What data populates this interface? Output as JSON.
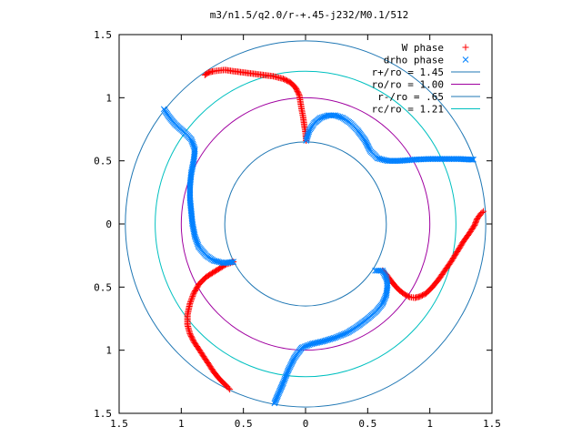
{
  "chart_data": {
    "type": "scatter",
    "title": "m3/n1.5/q2.0/r-+.45-j232/M0.1/512",
    "xlim": [
      -1.5,
      1.5
    ],
    "ylim": [
      -1.5,
      1.5
    ],
    "xticks": [
      -1.5,
      -1,
      -0.5,
      0,
      0.5,
      1,
      1.5
    ],
    "yticks": [
      1.5,
      1,
      0.5,
      0,
      -0.5,
      -1,
      -1.5
    ],
    "xtick_labels": [
      "1.5",
      "1",
      "0.5",
      "0",
      "0.5",
      "1",
      "1.5"
    ],
    "ytick_labels": [
      "1.5",
      "1",
      "0.5",
      "0",
      "0.5",
      "1",
      "1.5"
    ],
    "grid": false,
    "legend_position": "top-right",
    "legend": [
      {
        "label": "W phase",
        "marker": "plus",
        "color": "#ff0000"
      },
      {
        "label": "drho phase",
        "marker": "cross",
        "color": "#0080ff"
      },
      {
        "label": "r+/ro = 1.45",
        "marker": "line",
        "color": "#1f77b4"
      },
      {
        "label": "ro/ro = 1.00",
        "marker": "line",
        "color": "#a000a0"
      },
      {
        "label": "r-/ro = .65",
        "marker": "line",
        "color": "#1f77b4"
      },
      {
        "label": "rc/ro = 1.21",
        "marker": "line",
        "color": "#00c0c0"
      }
    ],
    "circles": [
      {
        "name": "r+/ro = 1.45",
        "r": 1.45,
        "color": "#1f77b4"
      },
      {
        "name": "ro/ro = 1.00",
        "r": 1.0,
        "color": "#a000a0"
      },
      {
        "name": "r-/ro = .65",
        "r": 0.65,
        "color": "#1f77b4"
      },
      {
        "name": "rc/ro = 1.21",
        "r": 1.21,
        "color": "#00c0c0"
      }
    ],
    "series": [
      {
        "name": "W phase",
        "marker": "plus",
        "color": "#ff0000",
        "arms": [
          [
            [
              -0.81,
              1.18
            ],
            [
              -0.78,
              1.2
            ],
            [
              -0.74,
              1.21
            ],
            [
              -0.7,
              1.215
            ],
            [
              -0.65,
              1.22
            ],
            [
              -0.58,
              1.21
            ],
            [
              -0.5,
              1.2
            ],
            [
              -0.42,
              1.19
            ],
            [
              -0.34,
              1.18
            ],
            [
              -0.26,
              1.17
            ],
            [
              -0.18,
              1.15
            ],
            [
              -0.12,
              1.12
            ],
            [
              -0.08,
              1.08
            ],
            [
              -0.05,
              1.02
            ],
            [
              -0.04,
              0.96
            ],
            [
              -0.03,
              0.9
            ],
            [
              -0.02,
              0.85
            ],
            [
              -0.01,
              0.78
            ],
            [
              0.0,
              0.72
            ],
            [
              0.005,
              0.66
            ]
          ],
          [
            [
              0.62,
              -0.37
            ],
            [
              0.65,
              -0.4
            ],
            [
              0.68,
              -0.44
            ],
            [
              0.72,
              -0.49
            ],
            [
              0.76,
              -0.53
            ],
            [
              0.8,
              -0.56
            ],
            [
              0.84,
              -0.58
            ],
            [
              0.88,
              -0.585
            ],
            [
              0.92,
              -0.575
            ],
            [
              0.97,
              -0.55
            ],
            [
              1.02,
              -0.5
            ],
            [
              1.07,
              -0.44
            ],
            [
              1.12,
              -0.37
            ],
            [
              1.17,
              -0.3
            ],
            [
              1.22,
              -0.22
            ],
            [
              1.27,
              -0.14
            ],
            [
              1.32,
              -0.07
            ],
            [
              1.36,
              -0.01
            ],
            [
              1.38,
              0.04
            ],
            [
              1.41,
              0.08
            ],
            [
              1.43,
              0.1
            ]
          ],
          [
            [
              -0.58,
              -0.3
            ],
            [
              -0.64,
              -0.32
            ],
            [
              -0.72,
              -0.37
            ],
            [
              -0.8,
              -0.42
            ],
            [
              -0.86,
              -0.48
            ],
            [
              -0.9,
              -0.55
            ],
            [
              -0.93,
              -0.63
            ],
            [
              -0.95,
              -0.72
            ],
            [
              -0.95,
              -0.8
            ],
            [
              -0.93,
              -0.87
            ],
            [
              -0.9,
              -0.93
            ],
            [
              -0.86,
              -0.99
            ],
            [
              -0.82,
              -1.05
            ],
            [
              -0.78,
              -1.11
            ],
            [
              -0.74,
              -1.17
            ],
            [
              -0.7,
              -1.22
            ],
            [
              -0.66,
              -1.26
            ],
            [
              -0.63,
              -1.29
            ],
            [
              -0.61,
              -1.31
            ]
          ]
        ]
      },
      {
        "name": "drho phase",
        "marker": "cross",
        "color": "#0080ff",
        "arms": [
          [
            [
              0.005,
              0.66
            ],
            [
              0.03,
              0.74
            ],
            [
              0.07,
              0.8
            ],
            [
              0.12,
              0.84
            ],
            [
              0.18,
              0.86
            ],
            [
              0.24,
              0.86
            ],
            [
              0.3,
              0.84
            ],
            [
              0.36,
              0.8
            ],
            [
              0.42,
              0.74
            ],
            [
              0.48,
              0.66
            ],
            [
              0.52,
              0.58
            ],
            [
              0.58,
              0.52
            ],
            [
              0.66,
              0.5
            ],
            [
              0.76,
              0.5
            ],
            [
              0.88,
              0.51
            ],
            [
              1.0,
              0.515
            ],
            [
              1.12,
              0.515
            ],
            [
              1.24,
              0.515
            ],
            [
              1.32,
              0.51
            ],
            [
              1.35,
              0.51
            ]
          ],
          [
            [
              -1.14,
              0.91
            ],
            [
              -1.1,
              0.85
            ],
            [
              -1.05,
              0.79
            ],
            [
              -0.98,
              0.73
            ],
            [
              -0.92,
              0.67
            ],
            [
              -0.89,
              0.59
            ],
            [
              -0.9,
              0.5
            ],
            [
              -0.92,
              0.4
            ],
            [
              -0.93,
              0.3
            ],
            [
              -0.93,
              0.2
            ],
            [
              -0.92,
              0.1
            ],
            [
              -0.91,
              0.0
            ],
            [
              -0.89,
              -0.1
            ],
            [
              -0.86,
              -0.18
            ],
            [
              -0.8,
              -0.25
            ],
            [
              -0.74,
              -0.29
            ],
            [
              -0.66,
              -0.31
            ],
            [
              -0.58,
              -0.3
            ]
          ],
          [
            [
              -0.25,
              -1.42
            ],
            [
              -0.22,
              -1.35
            ],
            [
              -0.18,
              -1.26
            ],
            [
              -0.14,
              -1.16
            ],
            [
              -0.09,
              -1.06
            ],
            [
              -0.03,
              -0.98
            ],
            [
              0.05,
              -0.95
            ],
            [
              0.14,
              -0.93
            ],
            [
              0.24,
              -0.9
            ],
            [
              0.34,
              -0.86
            ],
            [
              0.42,
              -0.81
            ],
            [
              0.5,
              -0.75
            ],
            [
              0.57,
              -0.69
            ],
            [
              0.62,
              -0.63
            ],
            [
              0.65,
              -0.56
            ],
            [
              0.66,
              -0.48
            ],
            [
              0.65,
              -0.43
            ],
            [
              0.62,
              -0.37
            ],
            [
              0.56,
              -0.37
            ]
          ]
        ]
      }
    ]
  }
}
